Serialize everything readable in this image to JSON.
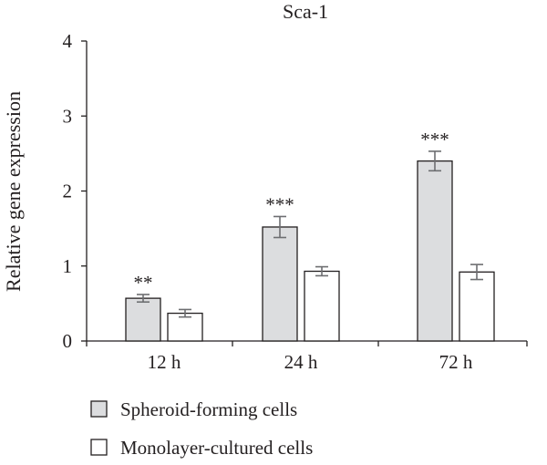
{
  "chart_data": {
    "type": "bar",
    "title": "Sca-1",
    "xlabel": "",
    "ylabel": "Relative gene expression",
    "ylim": [
      0,
      4
    ],
    "yticks": [
      "0",
      "1",
      "2",
      "3",
      "4"
    ],
    "categories": [
      "12 h",
      "24 h",
      "72 h"
    ],
    "series": [
      {
        "name": "Spheroid-forming cells",
        "values": [
          0.57,
          1.52,
          2.4
        ],
        "errors": [
          0.05,
          0.14,
          0.13
        ],
        "color": "#dcdddf"
      },
      {
        "name": "Monolayer-cultured cells",
        "values": [
          0.37,
          0.93,
          0.92
        ],
        "errors": [
          0.05,
          0.06,
          0.1
        ],
        "color": "#ffffff"
      }
    ],
    "significance": [
      "**",
      "***",
      "***"
    ],
    "grid": false,
    "legend_position": "bottom-left"
  }
}
